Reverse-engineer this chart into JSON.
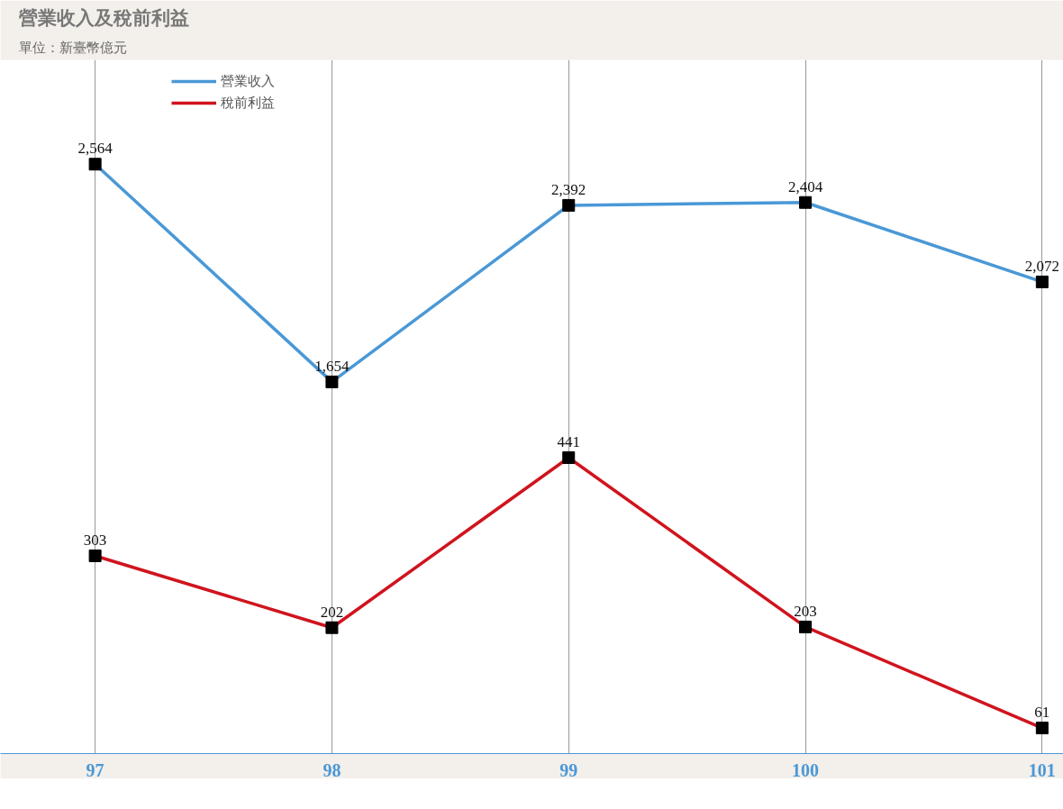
{
  "chart_data": {
    "type": "line",
    "title": "營業收入及稅前利益",
    "subtitle": "單位：新臺幣億元",
    "categories": [
      "97",
      "98",
      "99",
      "100",
      "101"
    ],
    "series": [
      {
        "name": "營業收入",
        "color": "#4a98d6",
        "values": [
          2564,
          1654,
          2392,
          2404,
          2072
        ],
        "value_labels": [
          "2,564",
          "1,654",
          "2,392",
          "2,404",
          "2,072"
        ]
      },
      {
        "name": "稅前利益",
        "color": "#d0141e",
        "values": [
          303,
          202,
          441,
          203,
          61
        ],
        "value_labels": [
          "303",
          "202",
          "441",
          "203",
          "61"
        ],
        "axis": "y2"
      }
    ],
    "ylim": [
      100,
      3000
    ],
    "y2lim": [
      25,
      1000
    ],
    "tick_labels": "x",
    "grid": "x",
    "legend": "top",
    "marker": "square",
    "line_style": "solid"
  }
}
